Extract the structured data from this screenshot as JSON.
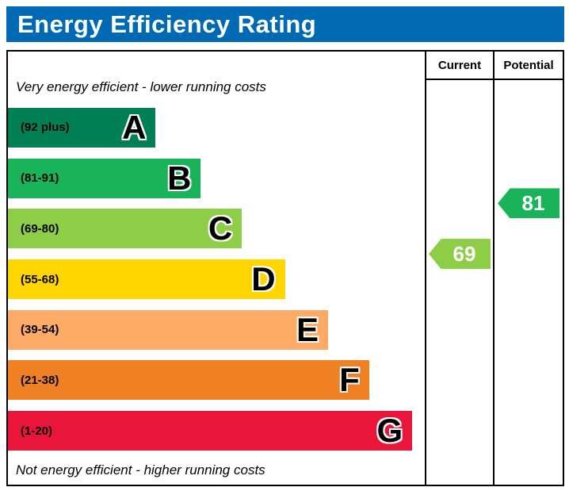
{
  "title": "Energy Efficiency Rating",
  "table": {
    "current_header": "Current",
    "potential_header": "Potential"
  },
  "captions": {
    "top": "Very energy efficient - lower running costs",
    "bottom": "Not energy efficient - higher running costs"
  },
  "colors": {
    "title_bar": "#0069b4",
    "border": "#000000"
  },
  "chart_data": {
    "type": "bar",
    "title": "Energy Efficiency Rating",
    "bands": [
      {
        "letter": "A",
        "range_label": "(92 plus)",
        "min": 92,
        "max": 100,
        "color": "#008054",
        "width_pct": 36
      },
      {
        "letter": "B",
        "range_label": "(81-91)",
        "min": 81,
        "max": 91,
        "color": "#19b459",
        "width_pct": 47
      },
      {
        "letter": "C",
        "range_label": "(69-80)",
        "min": 69,
        "max": 80,
        "color": "#8dce46",
        "width_pct": 57
      },
      {
        "letter": "D",
        "range_label": "(55-68)",
        "min": 55,
        "max": 68,
        "color": "#ffd500",
        "width_pct": 67.5
      },
      {
        "letter": "E",
        "range_label": "(39-54)",
        "min": 39,
        "max": 54,
        "color": "#fcaa65",
        "width_pct": 78
      },
      {
        "letter": "F",
        "range_label": "(21-38)",
        "min": 21,
        "max": 38,
        "color": "#ef8023",
        "width_pct": 88
      },
      {
        "letter": "G",
        "range_label": "(1-20)",
        "min": 1,
        "max": 20,
        "color": "#e9153b",
        "width_pct": 98.5
      }
    ],
    "current": {
      "value": 69,
      "band": "C",
      "color": "#8dce46"
    },
    "potential": {
      "value": 81,
      "band": "B",
      "color": "#19b459"
    }
  }
}
